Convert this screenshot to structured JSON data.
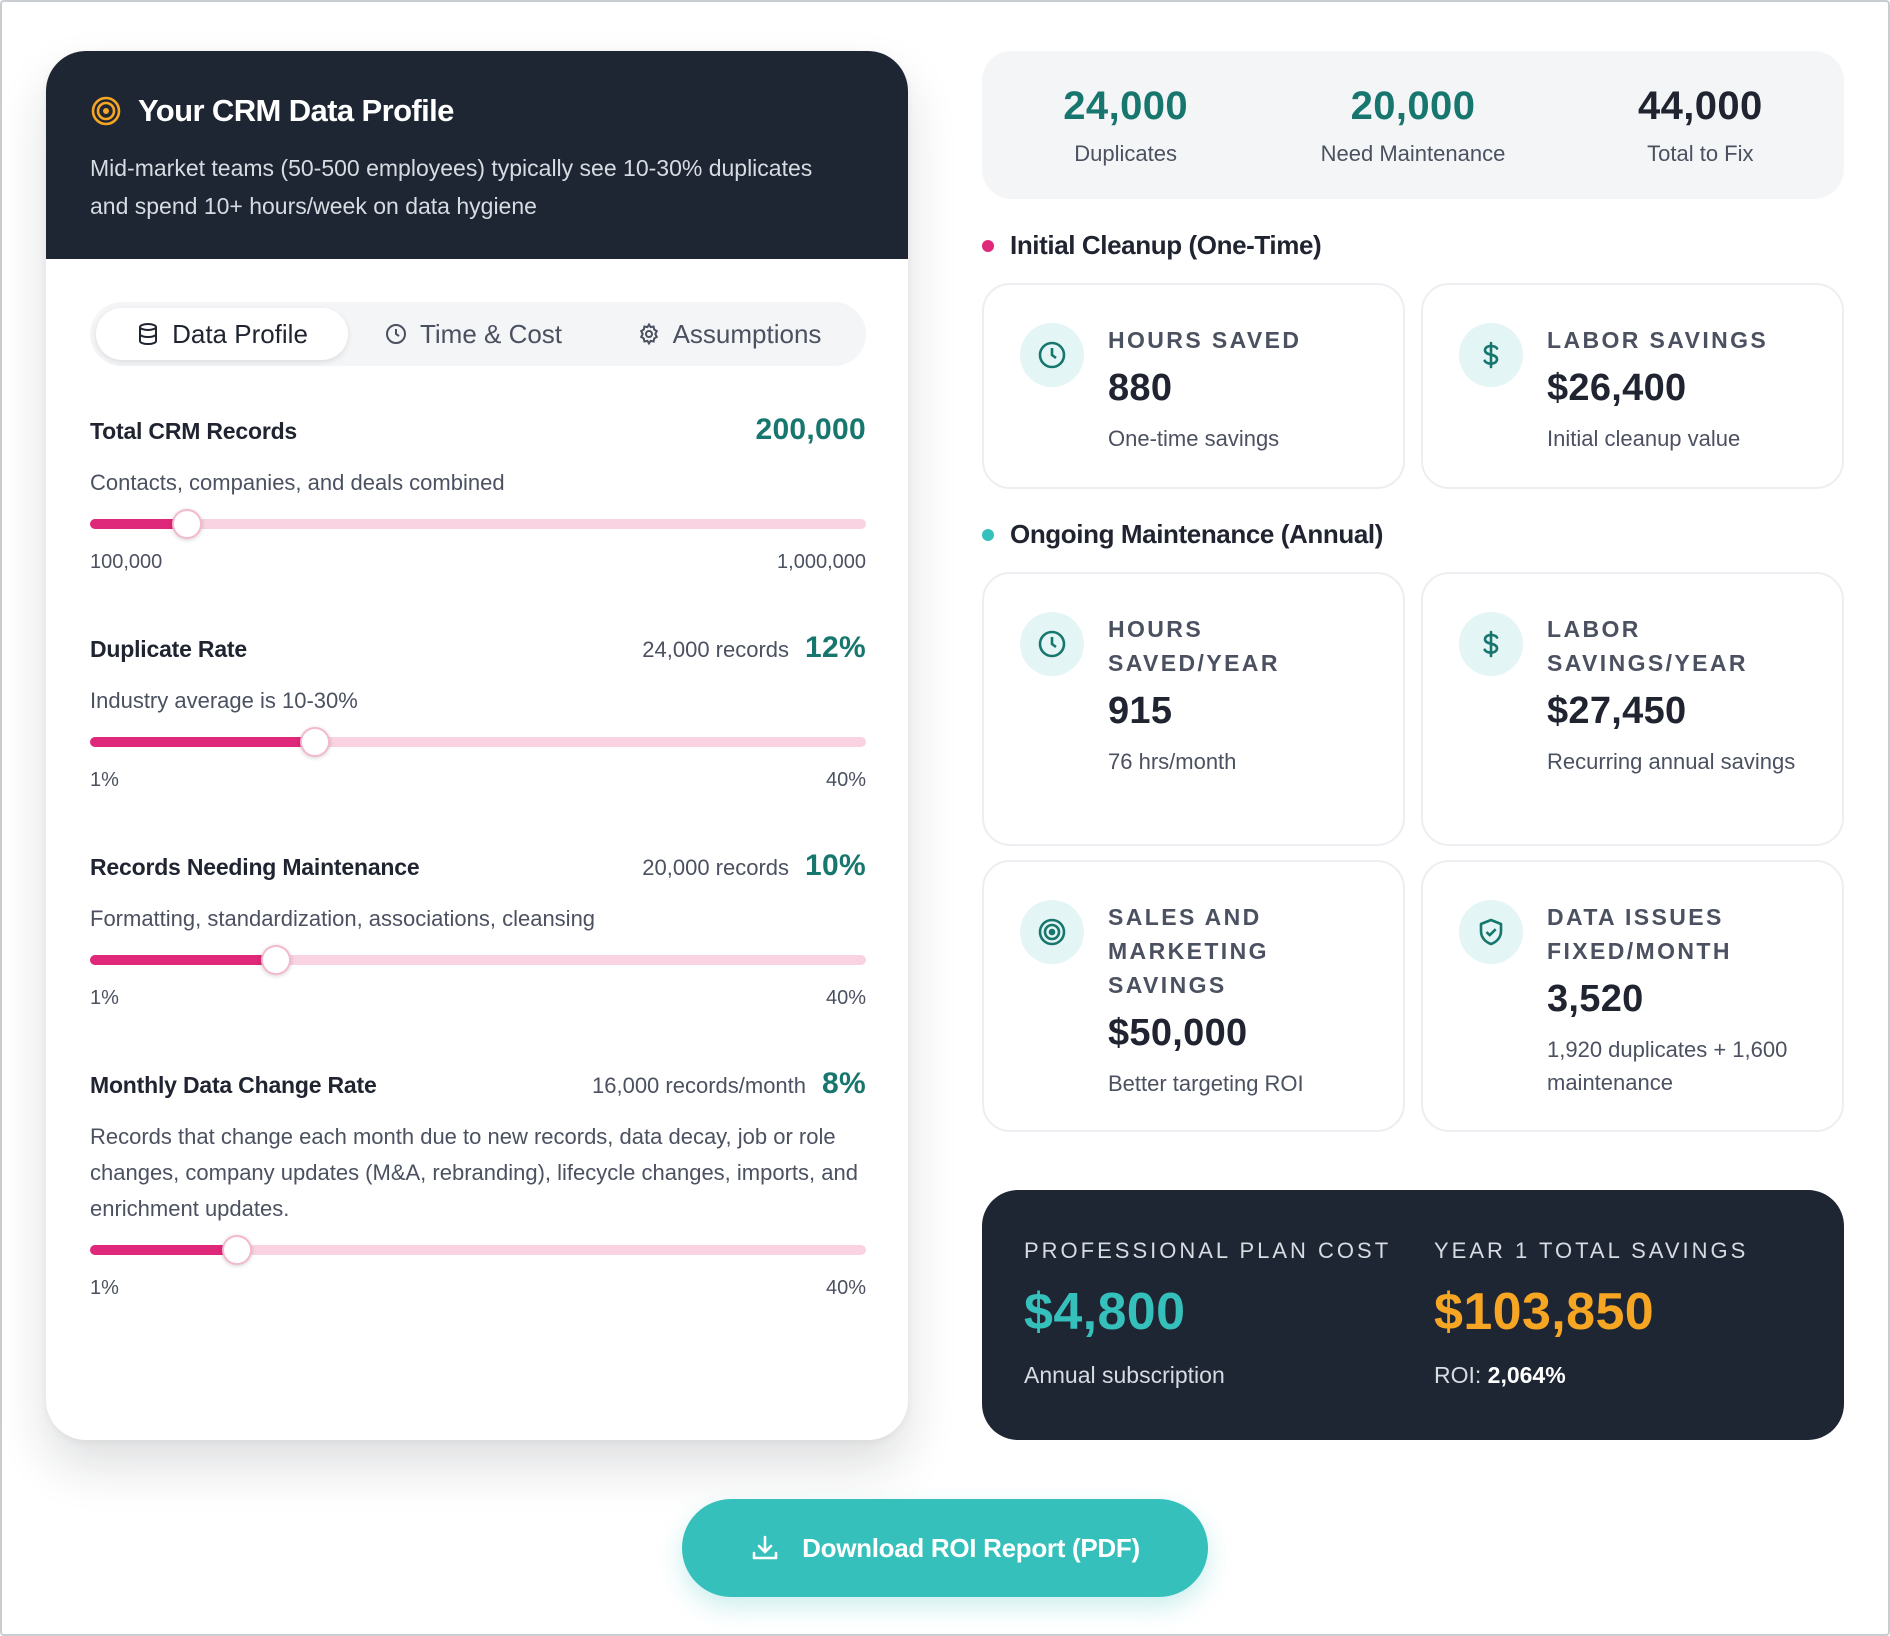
{
  "profile": {
    "title": "Your CRM Data Profile",
    "description": "Mid-market teams (50-500 employees) typically see 10-30% duplicates and spend 10+ hours/week on data hygiene"
  },
  "tabs": [
    {
      "label": "Data Profile",
      "icon": "database-icon",
      "active": true
    },
    {
      "label": "Time & Cost",
      "icon": "clock-icon",
      "active": false
    },
    {
      "label": "Assumptions",
      "icon": "gear-icon",
      "active": false
    }
  ],
  "sliders": {
    "total_records": {
      "title": "Total CRM Records",
      "value": "200,000",
      "description": "Contacts, companies, and deals combined",
      "min_label": "100,000",
      "max_label": "1,000,000",
      "position": 0.125
    },
    "duplicate_rate": {
      "title": "Duplicate Rate",
      "count": "24,000 records",
      "value": "12%",
      "description": "Industry average is 10-30%",
      "min_label": "1%",
      "max_label": "40%",
      "position": 0.29
    },
    "maintenance": {
      "title": "Records Needing Maintenance",
      "count": "20,000 records",
      "value": "10%",
      "description": "Formatting, standardization, associations, cleansing",
      "min_label": "1%",
      "max_label": "40%",
      "position": 0.24
    },
    "change_rate": {
      "title": "Monthly Data Change Rate",
      "count": "16,000 records/month",
      "value": "8%",
      "description": "Records that change each month due to new records, data decay, job or role changes, company updates (M&A, rebranding), lifecycle changes, imports, and enrichment updates.",
      "min_label": "1%",
      "max_label": "40%",
      "position": 0.19
    }
  },
  "stats": [
    {
      "value": "24,000",
      "label": "Duplicates"
    },
    {
      "value": "20,000",
      "label": "Need Maintenance"
    },
    {
      "value": "44,000",
      "label": "Total to Fix"
    }
  ],
  "initial": {
    "title": "Initial Cleanup (One-Time)",
    "dot_color": "#e0287a",
    "hours": {
      "label": "HOURS SAVED",
      "value": "880",
      "sub": "One-time savings",
      "icon": "clock-icon"
    },
    "labor": {
      "label": "LABOR SAVINGS",
      "value": "$26,400",
      "sub": "Initial cleanup value",
      "icon": "dollar-icon"
    }
  },
  "ongoing": {
    "title": "Ongoing Maintenance (Annual)",
    "dot_color": "#35c0bb",
    "hours": {
      "label": "HOURS SAVED/YEAR",
      "value": "915",
      "sub": "76 hrs/month",
      "icon": "clock-icon"
    },
    "labor": {
      "label": "LABOR SAVINGS/YEAR",
      "value": "$27,450",
      "sub": "Recurring annual savings",
      "icon": "dollar-icon"
    },
    "sales": {
      "label": "SALES AND MARKETING SAVINGS",
      "value": "$50,000",
      "sub": "Better targeting ROI",
      "icon": "target-icon"
    },
    "issues": {
      "label": "DATA ISSUES FIXED/MONTH",
      "value": "3,520",
      "sub": "1,920 duplicates + 1,600 maintenance",
      "icon": "shield-check-icon"
    }
  },
  "cost": {
    "plan_label": "PROFESSIONAL PLAN COST",
    "plan_value": "$4,800",
    "plan_sub": "Annual subscription",
    "savings_label": "YEAR 1 TOTAL SAVINGS",
    "savings_value": "$103,850",
    "roi_label": "ROI:",
    "roi_value": "2,064%"
  },
  "download": {
    "label": "Download ROI Report (PDF)",
    "icon": "download-icon"
  },
  "colors": {
    "dark_bg": "#1f2633",
    "teal_text": "#17766e",
    "teal_accent": "#35c0bb",
    "pink_accent": "#e0287a",
    "orange_accent": "#f6a623"
  }
}
